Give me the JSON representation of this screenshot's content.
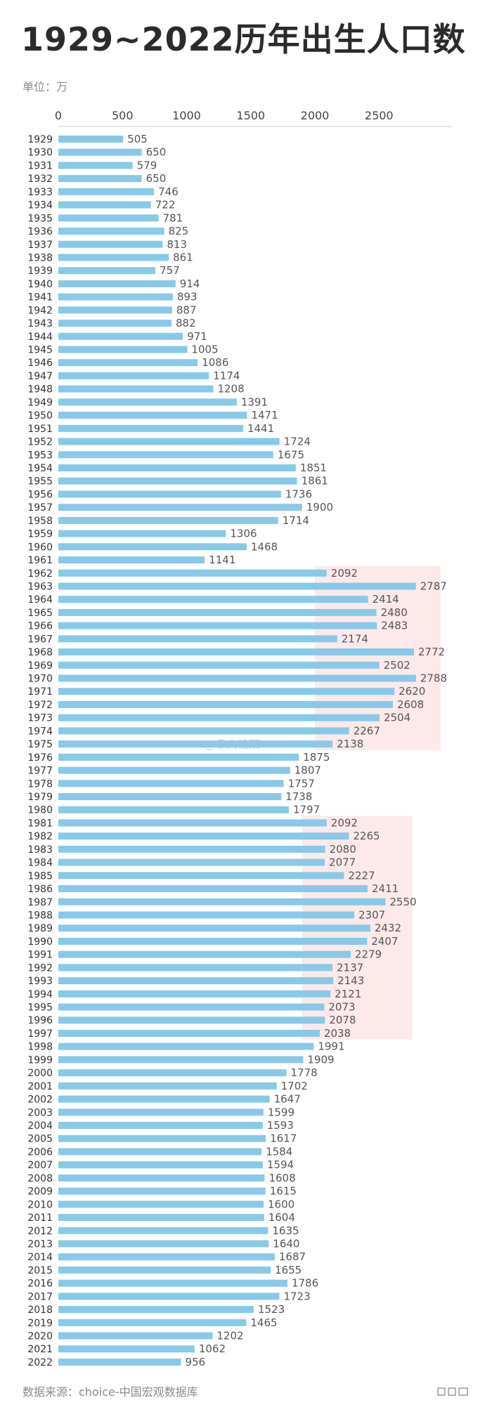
{
  "title": "1929~2022历年出生人口数",
  "unit": "单位：万",
  "source": "数据来源：choice-中国宏观数据库",
  "watermark": "@冬大论观",
  "colors": {
    "bar": "#89c9e8",
    "highlight": "#fde9ea",
    "axis": "#cccccc",
    "text": "#333333"
  },
  "chart_data": {
    "type": "bar",
    "orientation": "horizontal",
    "title": "1929~2022历年出生人口数",
    "xlabel": "",
    "ylabel": "",
    "unit": "万",
    "xlim": [
      0,
      2900
    ],
    "xticks": [
      0,
      500,
      1000,
      1500,
      2000,
      2500
    ],
    "grid": false,
    "highlight_ranges": [
      [
        "1962",
        "1975"
      ],
      [
        "1981",
        "1997"
      ]
    ],
    "categories": [
      "1929",
      "1930",
      "1931",
      "1932",
      "1933",
      "1934",
      "1935",
      "1936",
      "1937",
      "1938",
      "1939",
      "1940",
      "1941",
      "1942",
      "1943",
      "1944",
      "1945",
      "1946",
      "1947",
      "1948",
      "1949",
      "1950",
      "1951",
      "1952",
      "1953",
      "1954",
      "1955",
      "1956",
      "1957",
      "1958",
      "1959",
      "1960",
      "1961",
      "1962",
      "1963",
      "1964",
      "1965",
      "1966",
      "1967",
      "1968",
      "1969",
      "1970",
      "1971",
      "1972",
      "1973",
      "1974",
      "1975",
      "1976",
      "1977",
      "1978",
      "1979",
      "1980",
      "1981",
      "1982",
      "1983",
      "1984",
      "1985",
      "1986",
      "1987",
      "1988",
      "1989",
      "1990",
      "1991",
      "1992",
      "1993",
      "1994",
      "1995",
      "1996",
      "1997",
      "1998",
      "1999",
      "2000",
      "2001",
      "2002",
      "2003",
      "2004",
      "2005",
      "2006",
      "2007",
      "2008",
      "2009",
      "2010",
      "2011",
      "2012",
      "2013",
      "2014",
      "2015",
      "2016",
      "2017",
      "2018",
      "2019",
      "2020",
      "2021",
      "2022"
    ],
    "values": [
      505,
      650,
      579,
      650,
      746,
      722,
      781,
      825,
      813,
      861,
      757,
      914,
      893,
      887,
      882,
      971,
      1005,
      1086,
      1174,
      1208,
      1391,
      1471,
      1441,
      1724,
      1675,
      1851,
      1861,
      1736,
      1900,
      1714,
      1306,
      1468,
      1141,
      2092,
      2787,
      2414,
      2480,
      2483,
      2174,
      2772,
      2502,
      2788,
      2620,
      2608,
      2504,
      2267,
      2138,
      1875,
      1807,
      1757,
      1738,
      1797,
      2092,
      2265,
      2080,
      2077,
      2227,
      2411,
      2550,
      2307,
      2432,
      2407,
      2279,
      2137,
      2143,
      2121,
      2073,
      2078,
      2038,
      1991,
      1909,
      1778,
      1702,
      1647,
      1599,
      1593,
      1617,
      1584,
      1594,
      1608,
      1615,
      1600,
      1604,
      1635,
      1640,
      1687,
      1655,
      1786,
      1723,
      1523,
      1465,
      1202,
      1062,
      956
    ]
  }
}
